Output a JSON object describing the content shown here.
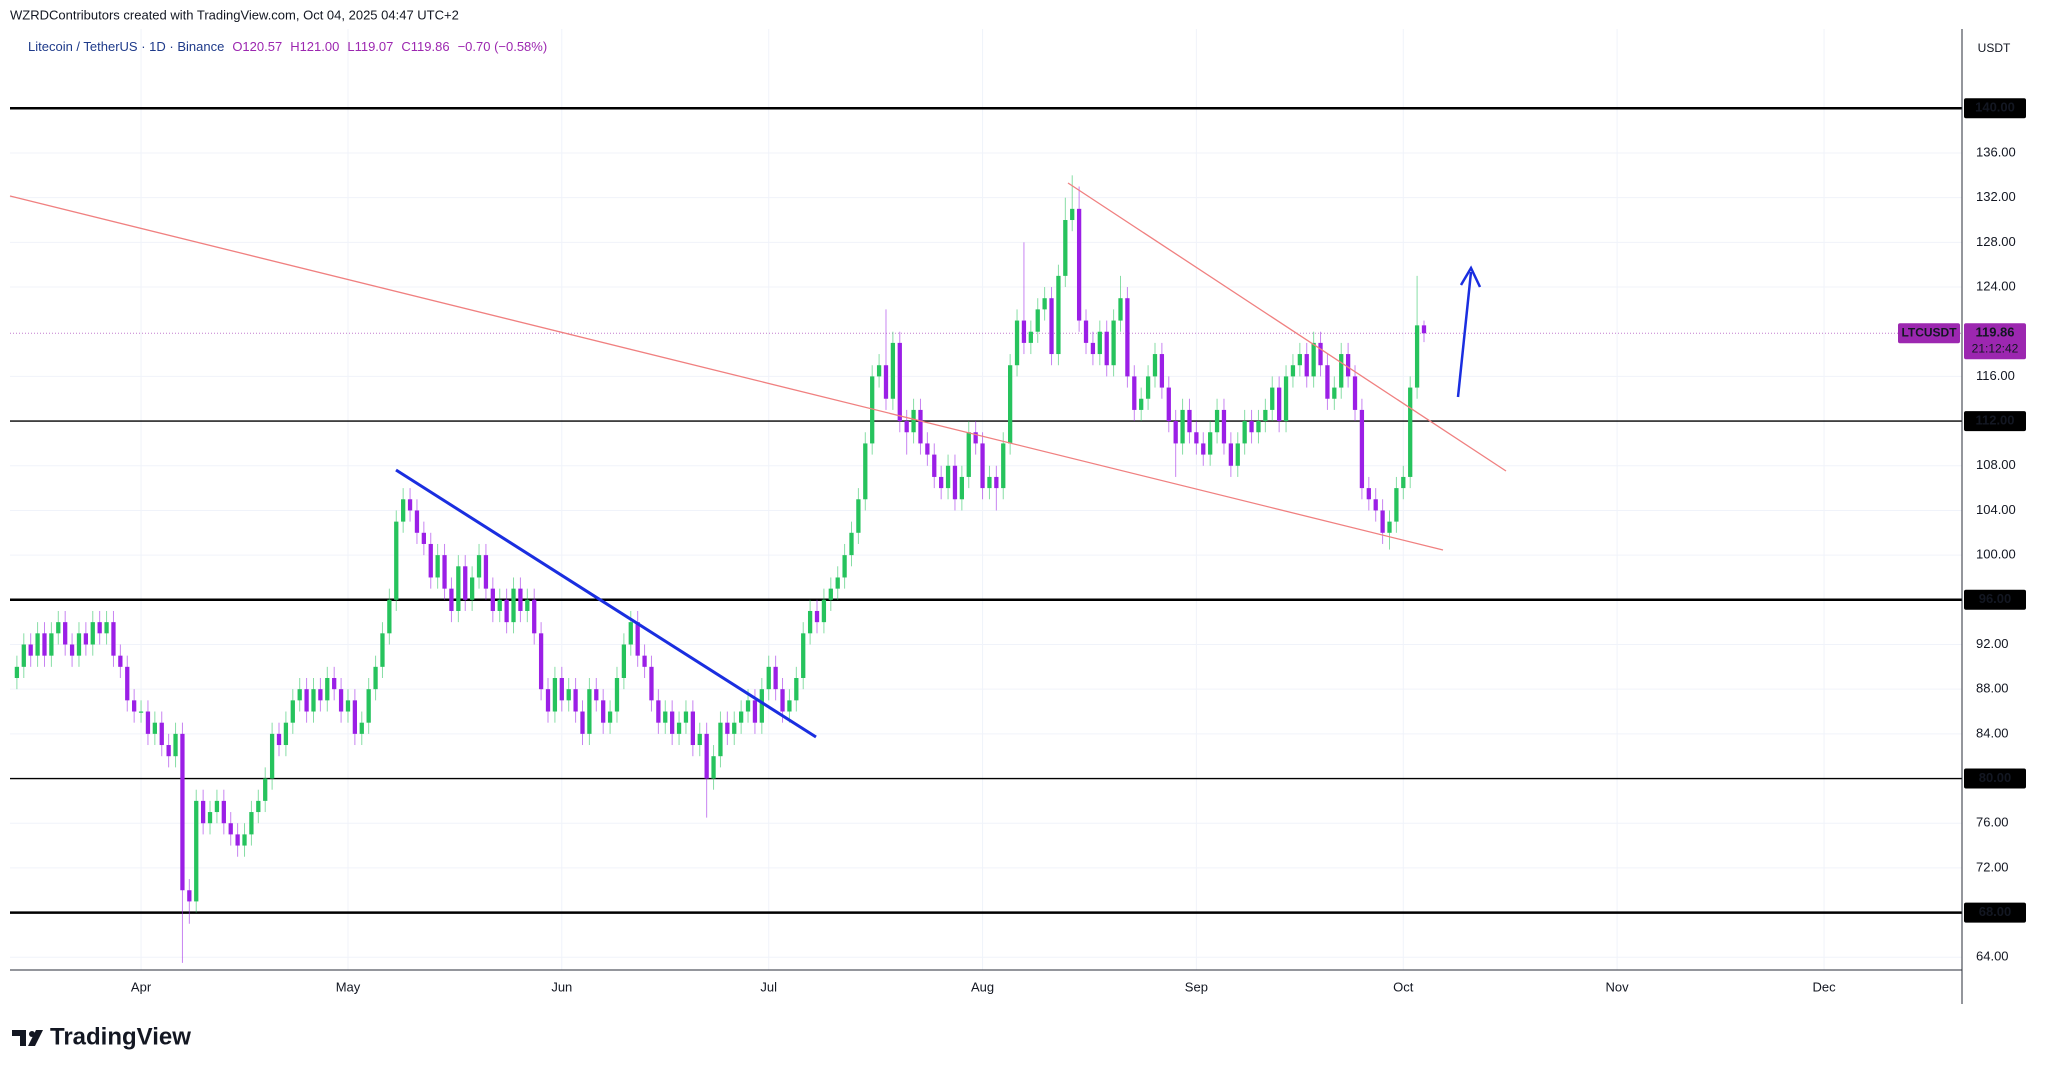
{
  "header": {
    "attribution": "WZRDContributors created with TradingView.com, Oct 04, 2025 04:47 UTC+2",
    "symbol_line": "Litecoin / TetherUS · 1D · Binance",
    "ohlc": [
      "O120.57",
      "H121.00",
      "L119.07",
      "C119.86",
      "−0.70 (−0.58%)"
    ]
  },
  "brand": "TradingView",
  "chart_data": {
    "type": "candlestick",
    "y_unit": "USDT",
    "up_color": "#26c35d",
    "down_color": "#9b1fe6",
    "xlim": [
      -1,
      282
    ],
    "ylim": [
      62.86,
      147.1
    ],
    "xticks": [
      {
        "value": 18,
        "label": "Apr"
      },
      {
        "value": 48,
        "label": "May"
      },
      {
        "value": 79,
        "label": "Jun"
      },
      {
        "value": 109,
        "label": "Jul"
      },
      {
        "value": 140,
        "label": "Aug"
      },
      {
        "value": 171,
        "label": "Sep"
      },
      {
        "value": 201,
        "label": "Oct"
      },
      {
        "value": 232,
        "label": "Nov"
      },
      {
        "value": 262,
        "label": "Dec"
      }
    ],
    "yticks": [
      {
        "value": 64,
        "label": "64.00"
      },
      {
        "value": 72,
        "label": "72.00"
      },
      {
        "value": 76,
        "label": "76.00"
      },
      {
        "value": 84,
        "label": "84.00"
      },
      {
        "value": 88,
        "label": "88.00"
      },
      {
        "value": 92,
        "label": "92.00"
      },
      {
        "value": 100,
        "label": "100.00"
      },
      {
        "value": 104,
        "label": "104.00"
      },
      {
        "value": 108,
        "label": "108.00"
      },
      {
        "value": 116,
        "label": "116.00"
      },
      {
        "value": 124,
        "label": "124.00"
      },
      {
        "value": 128,
        "label": "128.00"
      },
      {
        "value": 132,
        "label": "132.00"
      },
      {
        "value": 136,
        "label": "136.00"
      }
    ],
    "grid": true,
    "levels": [
      {
        "value": 140,
        "label": "140.00",
        "width": 2.5
      },
      {
        "value": 112,
        "label": "112.00",
        "width": 1.3
      },
      {
        "value": 96,
        "label": "96.00",
        "width": 2.5
      },
      {
        "value": 80,
        "label": "80.00",
        "width": 1.3
      },
      {
        "value": 68,
        "label": "68.00",
        "width": 2.5
      }
    ],
    "last_price": {
      "symbol": "LTCUSDT",
      "value": 119.86,
      "label": "119.86",
      "countdown": "21:12:42",
      "color": "#9c27b0"
    },
    "open": [
      89,
      90,
      92,
      91,
      93,
      91,
      93,
      94,
      92,
      91,
      93,
      92,
      94,
      93,
      94,
      91,
      90,
      87,
      86,
      86,
      84,
      85,
      83,
      82,
      84,
      70,
      69,
      78,
      76,
      77,
      78,
      76,
      75,
      74,
      75,
      77,
      78,
      80,
      84,
      83,
      85,
      87,
      88,
      86,
      88,
      87,
      89,
      88,
      86,
      87,
      84,
      85,
      88,
      90,
      93,
      96,
      103,
      105,
      104,
      102,
      101,
      98,
      100,
      97,
      95,
      99,
      96,
      98,
      100,
      97,
      95,
      96,
      94,
      97,
      95,
      96,
      93,
      88,
      86,
      89,
      87,
      88,
      86,
      84,
      88,
      87,
      85,
      86,
      89,
      92,
      94,
      91,
      90,
      87,
      85,
      86,
      84,
      85,
      86,
      83,
      84,
      80,
      82,
      85,
      84,
      85,
      86,
      87,
      85,
      88,
      90,
      88,
      86,
      87,
      89,
      93,
      95,
      94,
      96,
      97,
      98,
      100,
      102,
      105,
      110,
      116,
      117,
      114,
      119,
      112,
      111,
      113,
      110,
      109,
      107,
      106,
      108,
      105,
      107,
      111,
      110,
      106,
      107,
      106,
      110,
      117,
      121,
      119,
      120,
      122,
      123,
      118,
      125,
      130,
      131,
      121,
      119,
      118,
      120,
      117,
      121,
      123,
      116,
      113,
      114,
      116,
      118,
      115,
      112,
      110,
      113,
      111,
      110,
      109,
      111,
      113,
      110,
      108,
      110,
      112,
      111,
      112,
      113,
      115,
      112,
      116,
      117,
      118,
      116,
      119,
      117,
      114,
      115,
      118,
      116,
      113,
      106,
      105,
      104,
      102,
      103,
      106,
      107,
      115,
      120.57
    ],
    "high": [
      91,
      93,
      93,
      94,
      94,
      94,
      95,
      95,
      93,
      94,
      94,
      95,
      95,
      95,
      95,
      92,
      91,
      88,
      87,
      87,
      86,
      86,
      84,
      85,
      85,
      71,
      79,
      79,
      78,
      79,
      79,
      77,
      76,
      76,
      78,
      79,
      81,
      85,
      85,
      86,
      88,
      89,
      89,
      89,
      89,
      90,
      90,
      89,
      88,
      88,
      86,
      89,
      91,
      94,
      97,
      104,
      106,
      106,
      105,
      103,
      102,
      101,
      101,
      98,
      100,
      100,
      99,
      101,
      101,
      98,
      97,
      97,
      98,
      98,
      97,
      97,
      94,
      89,
      90,
      90,
      89,
      89,
      87,
      89,
      89,
      88,
      87,
      90,
      93,
      95,
      95,
      92,
      91,
      88,
      87,
      87,
      86,
      87,
      87,
      85,
      85,
      83,
      86,
      86,
      86,
      87,
      88,
      88,
      89,
      91,
      91,
      89,
      88,
      90,
      94,
      96,
      96,
      97,
      98,
      99,
      101,
      103,
      106,
      111,
      117,
      118,
      122,
      120,
      120,
      113,
      114,
      114,
      111,
      110,
      108,
      109,
      109,
      108,
      112,
      112,
      111,
      108,
      108,
      111,
      118,
      122,
      128,
      121,
      123,
      124,
      124,
      126,
      132,
      134,
      133,
      122,
      120,
      121,
      121,
      122,
      125,
      124,
      117,
      115,
      117,
      119,
      119,
      116,
      113,
      114,
      114,
      112,
      111,
      112,
      114,
      114,
      111,
      111,
      113,
      113,
      113,
      114,
      116,
      116,
      117,
      118,
      119,
      119,
      120,
      120,
      118,
      116,
      119,
      119,
      117,
      114,
      107,
      106,
      105,
      104,
      107,
      108,
      116,
      125,
      121
    ],
    "low": [
      88,
      89,
      90,
      90,
      90,
      90,
      92,
      91,
      90,
      90,
      91,
      91,
      92,
      92,
      90,
      89,
      86,
      85,
      85,
      83,
      83,
      82,
      81,
      81,
      63.5,
      67,
      68,
      75,
      75,
      76,
      75,
      74,
      73,
      73,
      74,
      76,
      77,
      79,
      82,
      82,
      84,
      86,
      85,
      85,
      86,
      86,
      87,
      85,
      85,
      83,
      83,
      84,
      87,
      89,
      92,
      95,
      102,
      103,
      101,
      100,
      97,
      97,
      96,
      94,
      94,
      95,
      95,
      97,
      96,
      94,
      94,
      93,
      93,
      94,
      94,
      92,
      87,
      85,
      85,
      86,
      86,
      85,
      83,
      83,
      86,
      84,
      84,
      85,
      88,
      91,
      90,
      89,
      86,
      84,
      84,
      83,
      83,
      84,
      82,
      82,
      76.5,
      79,
      81,
      83,
      83,
      84,
      85,
      84,
      84,
      87,
      87,
      85,
      85,
      86,
      88,
      92,
      93,
      93,
      95,
      96,
      97,
      99,
      101,
      104,
      109,
      115,
      113,
      113,
      111,
      109,
      110,
      109,
      108,
      106,
      105,
      105,
      104,
      104,
      106,
      109,
      105,
      105,
      104,
      105,
      109,
      116,
      118,
      118,
      119,
      121,
      117,
      117,
      124,
      129,
      120,
      118,
      117,
      117,
      116,
      116,
      120,
      115,
      112,
      112,
      113,
      115,
      114,
      111,
      107,
      109,
      110,
      109,
      108,
      108,
      110,
      109,
      107,
      107,
      109,
      110,
      110,
      111,
      112,
      111,
      111,
      115,
      116,
      115,
      115,
      116,
      113,
      113,
      114,
      115,
      112,
      105,
      104,
      103,
      101,
      100.5,
      102,
      105,
      106,
      114,
      119.07
    ],
    "close": [
      90,
      92,
      91,
      93,
      91,
      93,
      94,
      92,
      91,
      93,
      92,
      94,
      93,
      94,
      91,
      90,
      87,
      86,
      86,
      84,
      85,
      83,
      82,
      84,
      70,
      69,
      78,
      76,
      77,
      78,
      76,
      75,
      74,
      75,
      77,
      78,
      80,
      84,
      83,
      85,
      87,
      88,
      86,
      88,
      87,
      89,
      88,
      86,
      87,
      84,
      85,
      88,
      90,
      93,
      96,
      103,
      105,
      104,
      102,
      101,
      98,
      100,
      97,
      95,
      99,
      96,
      98,
      100,
      97,
      95,
      96,
      94,
      97,
      95,
      96,
      93,
      88,
      86,
      89,
      87,
      88,
      86,
      84,
      88,
      87,
      85,
      86,
      89,
      92,
      94,
      91,
      90,
      87,
      85,
      86,
      84,
      85,
      86,
      83,
      84,
      80,
      82,
      85,
      84,
      85,
      86,
      87,
      85,
      88,
      90,
      88,
      86,
      87,
      89,
      93,
      95,
      94,
      96,
      97,
      98,
      100,
      102,
      105,
      110,
      116,
      117,
      114,
      119,
      112,
      111,
      113,
      110,
      109,
      107,
      106,
      108,
      105,
      107,
      111,
      110,
      106,
      107,
      106,
      110,
      117,
      121,
      119,
      120,
      122,
      123,
      118,
      125,
      130,
      131,
      121,
      119,
      118,
      120,
      117,
      121,
      123,
      116,
      113,
      114,
      116,
      118,
      115,
      112,
      110,
      113,
      111,
      110,
      109,
      111,
      113,
      110,
      108,
      110,
      112,
      111,
      112,
      113,
      115,
      112,
      116,
      117,
      118,
      116,
      119,
      117,
      114,
      115,
      118,
      116,
      113,
      106,
      105,
      104,
      102,
      103,
      106,
      107,
      115,
      120.57,
      119.86
    ]
  }
}
